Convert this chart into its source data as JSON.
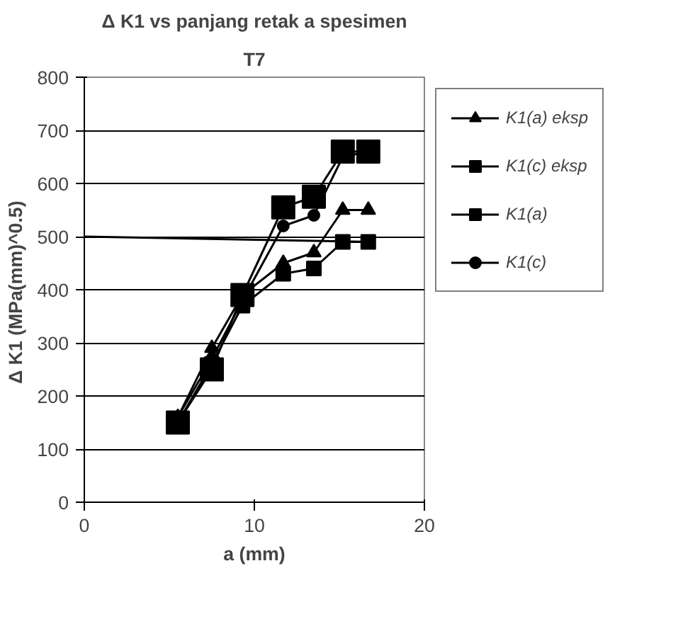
{
  "chart_data": {
    "type": "line",
    "title": "Δ K1 vs panjang retak a spesimen",
    "subtitle": "T7",
    "xlabel": "a (mm)",
    "ylabel": "Δ K1  (MPa(mm)^0.5)",
    "xlim": [
      0,
      20
    ],
    "xticks": [
      0,
      10,
      20
    ],
    "ylim": [
      0,
      800
    ],
    "yticks": [
      0,
      100,
      200,
      300,
      400,
      500,
      600,
      700,
      800
    ],
    "grid": "y",
    "legend": "right",
    "x": [
      5.5,
      7.5,
      9.3,
      11.7,
      13.5,
      15.2,
      16.7
    ],
    "series": [
      {
        "name": "K1(a) eksp",
        "color": "#000000",
        "marker": "triangle",
        "values": [
          160,
          290,
          390,
          450,
          470,
          550,
          550
        ]
      },
      {
        "name": "K1(c) eksp",
        "color": "#000000",
        "marker": "square",
        "values": [
          150,
          250,
          390,
          555,
          575,
          660,
          660
        ]
      },
      {
        "name": "K1(a)",
        "color": "#000000",
        "marker": "square",
        "values": [
          150,
          260,
          370,
          430,
          440,
          490,
          490
        ]
      },
      {
        "name": "K1(c)",
        "color": "#000000",
        "marker": "circle",
        "values": [
          160,
          270,
          380,
          520,
          540,
          650,
          660
        ]
      },
      {
        "color": "#000000",
        "marker": "none",
        "x": [
          0,
          16.7
        ],
        "values": [
          500,
          490
        ]
      }
    ]
  }
}
